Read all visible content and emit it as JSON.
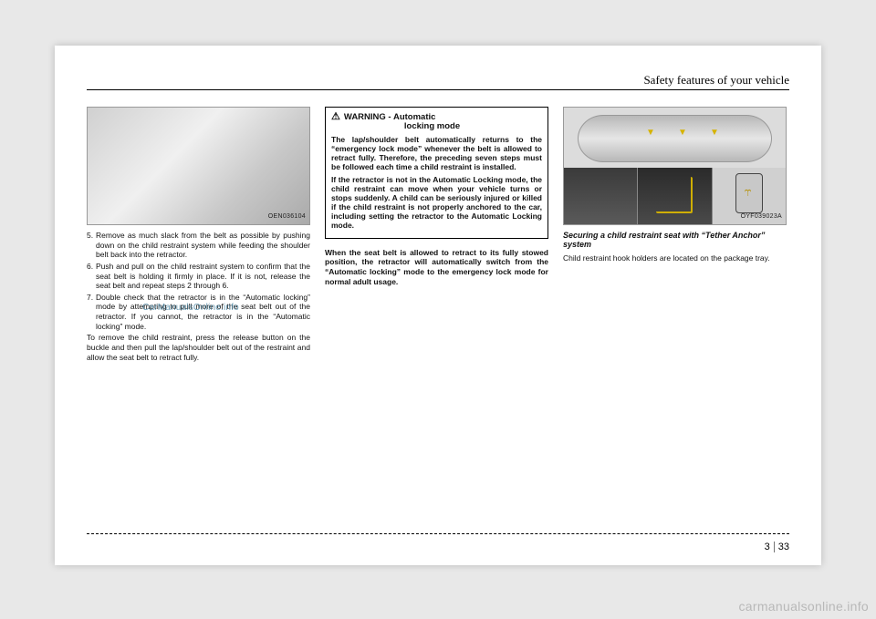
{
  "header": {
    "title": "Safety features of your vehicle"
  },
  "figure1": {
    "label": "OEN036104"
  },
  "figure2": {
    "label": "OYF039023A"
  },
  "col1": {
    "steps": [
      {
        "n": "5.",
        "t": "Remove as much slack from the belt as possible by pushing down on the child restraint system while feeding the shoulder belt back into the retractor."
      },
      {
        "n": "6.",
        "t": "Push and pull on the child restraint system to confirm that the seat belt is holding it firmly in place. If it is not, release the seat belt and repeat steps 2 through 6."
      },
      {
        "n": "7.",
        "t": "Double check that the retractor is in the “Automatic locking” mode by attempting to pull more of the seat belt out of the retractor. If you cannot, the retractor is in the “Automatic locking” mode."
      }
    ],
    "tail": "To remove the child restraint, press the release button on the buckle and then pull the lap/shoulder belt out of the restraint and allow the seat belt to retract fully."
  },
  "col2": {
    "warning": {
      "title": "WARNING -",
      "subtitle1": "Automatic",
      "subtitle2": "locking mode",
      "p1": "The lap/shoulder belt automatically returns to the “emergency lock mode” whenever the belt is allowed to retract fully. Therefore, the preceding seven steps must be followed each time a child restraint is installed.",
      "p2": "If the retractor is not in the Automatic Locking mode, the child restraint can move when your vehicle turns or stops suddenly. A child can be seriously injured or killed if the child restraint is not properly anchored to the car, including setting the retractor to the Automatic Locking mode."
    },
    "bold": "When the seat belt is allowed to retract to its fully stowed position, the retractor will automatically switch from the “Automatic locking” mode to the emergency lock mode for normal adult usage."
  },
  "col3": {
    "caption": "Securing a child restraint seat with “Tether Anchor” system",
    "body": "Child restraint hook holders are located on the package tray."
  },
  "watermark": "CarManualsOnline.info",
  "page": {
    "section": "3",
    "num": "33"
  },
  "sitemark": "carmanualsonline.info"
}
